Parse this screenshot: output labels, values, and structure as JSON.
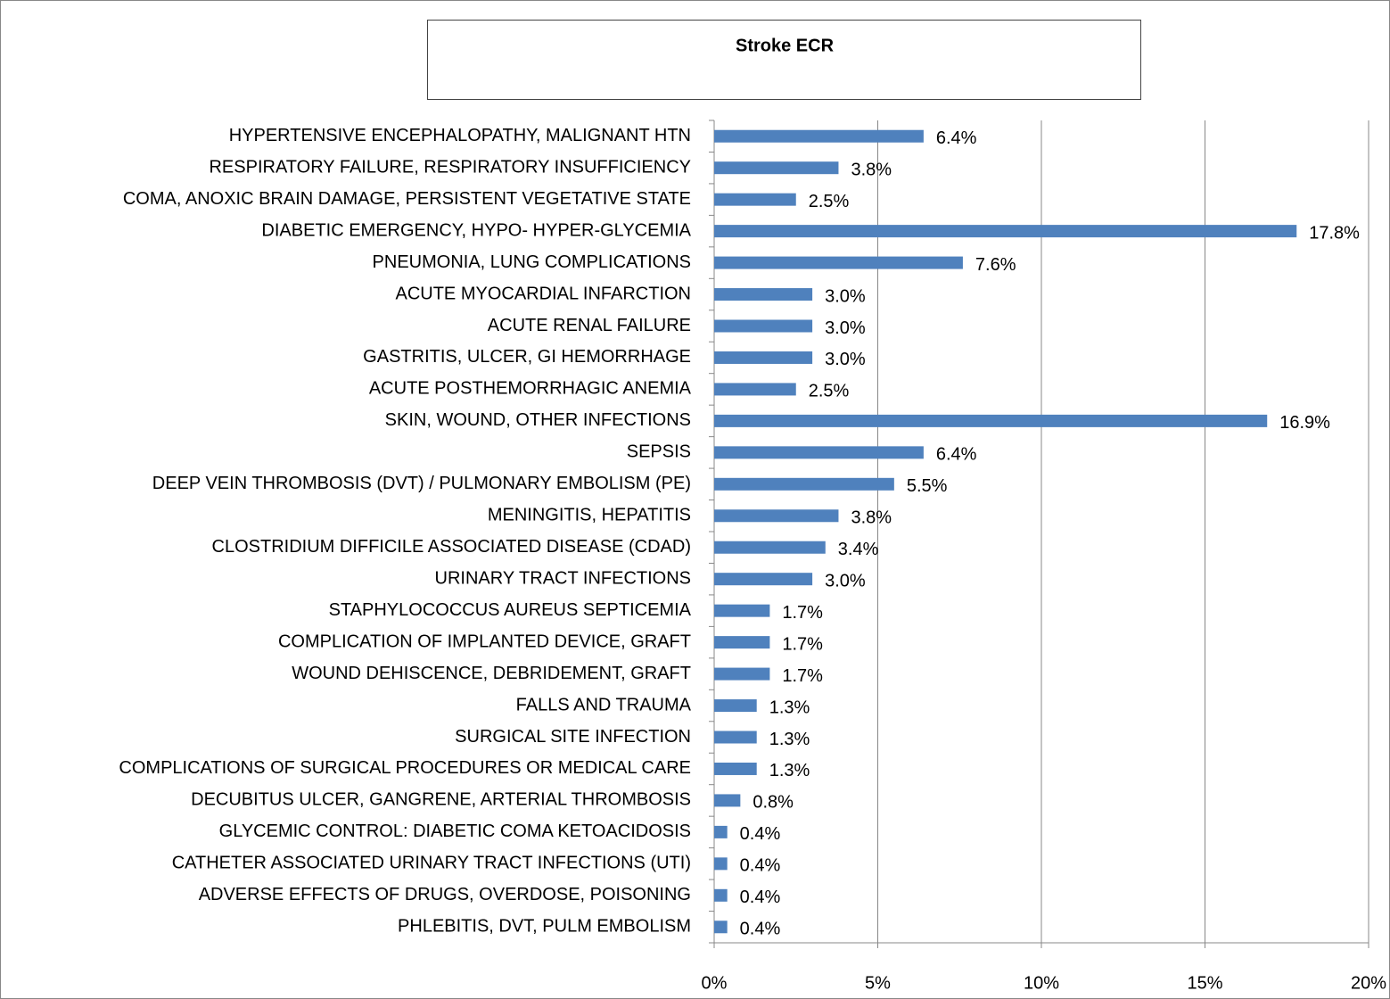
{
  "chart_data": {
    "type": "bar",
    "orientation": "horizontal",
    "title": "Stroke ECR",
    "categories": [
      "HYPERTENSIVE ENCEPHALOPATHY, MALIGNANT HTN",
      "RESPIRATORY FAILURE, RESPIRATORY INSUFFICIENCY",
      "COMA, ANOXIC BRAIN DAMAGE, PERSISTENT VEGETATIVE STATE",
      "DIABETIC EMERGENCY, HYPO- HYPER-GLYCEMIA",
      "PNEUMONIA, LUNG COMPLICATIONS",
      "ACUTE MYOCARDIAL INFARCTION",
      "ACUTE RENAL FAILURE",
      "GASTRITIS, ULCER, GI HEMORRHAGE",
      "ACUTE POSTHEMORRHAGIC ANEMIA",
      "SKIN, WOUND, OTHER INFECTIONS",
      "SEPSIS",
      "DEEP VEIN THROMBOSIS (DVT) / PULMONARY EMBOLISM (PE)",
      "MENINGITIS, HEPATITIS",
      "CLOSTRIDIUM DIFFICILE ASSOCIATED DISEASE (CDAD)",
      "URINARY TRACT INFECTIONS",
      "STAPHYLOCOCCUS AUREUS SEPTICEMIA",
      "COMPLICATION OF IMPLANTED DEVICE, GRAFT",
      "WOUND DEHISCENCE, DEBRIDEMENT, GRAFT",
      "FALLS AND TRAUMA",
      "SURGICAL SITE INFECTION",
      "COMPLICATIONS OF SURGICAL PROCEDURES OR MEDICAL CARE",
      "DECUBITUS ULCER, GANGRENE, ARTERIAL THROMBOSIS",
      "GLYCEMIC CONTROL: DIABETIC COMA KETOACIDOSIS",
      "CATHETER ASSOCIATED URINARY TRACT INFECTIONS (UTI)",
      "ADVERSE EFFECTS OF DRUGS, OVERDOSE, POISONING",
      "PHLEBITIS, DVT, PULM EMBOLISM"
    ],
    "values": [
      6.4,
      3.8,
      2.5,
      17.8,
      7.6,
      3.0,
      3.0,
      3.0,
      2.5,
      16.9,
      6.4,
      5.5,
      3.8,
      3.4,
      3.0,
      1.7,
      1.7,
      1.7,
      1.3,
      1.3,
      1.3,
      0.8,
      0.4,
      0.4,
      0.4,
      0.4
    ],
    "value_labels": [
      "6.4%",
      "3.8%",
      "2.5%",
      "17.8%",
      "7.6%",
      "3.0%",
      "3.0%",
      "3.0%",
      "2.5%",
      "16.9%",
      "6.4%",
      "5.5%",
      "3.8%",
      "3.4%",
      "3.0%",
      "1.7%",
      "1.7%",
      "1.7%",
      "1.3%",
      "1.3%",
      "1.3%",
      "0.8%",
      "0.4%",
      "0.4%",
      "0.4%",
      "0.4%"
    ],
    "color": "#4f81bd",
    "xlim": [
      0,
      20
    ],
    "xticks": [
      {
        "value": 0,
        "label": "0%"
      },
      {
        "value": 5,
        "label": "5%"
      },
      {
        "value": 10,
        "label": "10%"
      },
      {
        "value": 15,
        "label": "15%"
      },
      {
        "value": 20,
        "label": "20%"
      }
    ],
    "grid": true
  }
}
